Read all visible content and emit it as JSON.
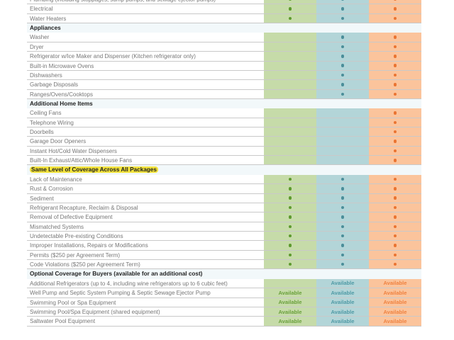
{
  "colors": {
    "basic": "#c6dba9",
    "mid": "#b3d5d8",
    "premium": "#fbc49c",
    "highlight": "#f3e33c"
  },
  "icons": {
    "covered": "filled-dot"
  },
  "rows": [
    {
      "type": "item",
      "label": "Plumbing (including stoppages, sump pumps, and sewage ejector pumps)",
      "marks": [
        "dot",
        "dot",
        "dot"
      ]
    },
    {
      "type": "item",
      "label": "Electrical",
      "marks": [
        "dot",
        "dot",
        "dot"
      ]
    },
    {
      "type": "item",
      "label": "Water Heaters",
      "marks": [
        "dot",
        "dot",
        "dot"
      ]
    },
    {
      "type": "section",
      "label": "Appliances"
    },
    {
      "type": "item",
      "label": "Washer",
      "marks": [
        "",
        "dot",
        "dot"
      ]
    },
    {
      "type": "item",
      "label": "Dryer",
      "marks": [
        "",
        "dot",
        "dot"
      ]
    },
    {
      "type": "item",
      "label": "Refrigerator w/Ice Maker and Dispenser (Kitchen refrigerator only)",
      "marks": [
        "",
        "dot",
        "dot"
      ]
    },
    {
      "type": "item",
      "label": "Built-in Microwave Ovens",
      "marks": [
        "",
        "dot",
        "dot"
      ]
    },
    {
      "type": "item",
      "label": "Dishwashers",
      "marks": [
        "",
        "dot",
        "dot"
      ]
    },
    {
      "type": "item",
      "label": "Garbage Disposals",
      "marks": [
        "",
        "dot",
        "dot"
      ]
    },
    {
      "type": "item",
      "label": "Ranges/Ovens/Cooktops",
      "marks": [
        "",
        "dot",
        "dot"
      ]
    },
    {
      "type": "section",
      "label": "Additional Home Items"
    },
    {
      "type": "item",
      "label": "Ceiling Fans",
      "marks": [
        "",
        "",
        "dot"
      ]
    },
    {
      "type": "item",
      "label": "Telephone Wiring",
      "marks": [
        "",
        "",
        "dot"
      ]
    },
    {
      "type": "item",
      "label": "Doorbells",
      "marks": [
        "",
        "",
        "dot"
      ]
    },
    {
      "type": "item",
      "label": "Garage Door Openers",
      "marks": [
        "",
        "",
        "dot"
      ]
    },
    {
      "type": "item",
      "label": "Instant Hot/Cold Water Dispensers",
      "marks": [
        "",
        "",
        "dot"
      ]
    },
    {
      "type": "item",
      "label": "Built-In Exhaust/Attic/Whole House Fans",
      "marks": [
        "",
        "",
        "dot"
      ]
    },
    {
      "type": "section",
      "label": "Same Level of Coverage Across All Packages",
      "highlight": true
    },
    {
      "type": "item",
      "label": "Lack of Maintenance",
      "marks": [
        "dot",
        "dot",
        "dot"
      ]
    },
    {
      "type": "item",
      "label": "Rust & Corrosion",
      "marks": [
        "dot",
        "dot",
        "dot"
      ]
    },
    {
      "type": "item",
      "label": "Sediment",
      "marks": [
        "dot",
        "dot",
        "dot"
      ]
    },
    {
      "type": "item",
      "label": "Refrigerant Recapture, Reclaim & Disposal",
      "marks": [
        "dot",
        "dot",
        "dot"
      ]
    },
    {
      "type": "item",
      "label": "Removal of Defective Equipment",
      "marks": [
        "dot",
        "dot",
        "dot"
      ]
    },
    {
      "type": "item",
      "label": "Mismatched Systems",
      "marks": [
        "dot",
        "dot",
        "dot"
      ]
    },
    {
      "type": "item",
      "label": "Undetectable Pre-existing Conditions",
      "marks": [
        "dot",
        "dot",
        "dot"
      ]
    },
    {
      "type": "item",
      "label": "Improper Installations, Repairs or Modifications",
      "marks": [
        "dot",
        "dot",
        "dot"
      ]
    },
    {
      "type": "item",
      "label": "Permits ($250 per Agreement Term)",
      "marks": [
        "dot",
        "dot",
        "dot"
      ]
    },
    {
      "type": "item",
      "label": "Code Violations ($250 per Agreement Term)",
      "marks": [
        "dot",
        "dot",
        "dot"
      ]
    },
    {
      "type": "section",
      "label": "Optional Coverage for Buyers (available for an additional cost)"
    },
    {
      "type": "item",
      "label": "Additional Refrigerators (up to 4, including wine refrigerators up to 6 cubic feet)",
      "marks": [
        "",
        "Available",
        "Available"
      ]
    },
    {
      "type": "item",
      "label": "Well Pump and Septic System Pumping & Septic Sewage Ejector Pump",
      "marks": [
        "Available",
        "Available",
        "Available"
      ]
    },
    {
      "type": "item",
      "label": "Swimming Pool or Spa Equipment",
      "marks": [
        "Available",
        "Available",
        "Available"
      ]
    },
    {
      "type": "item",
      "label": "Swimming Pool/Spa Equipment (shared equipment)",
      "marks": [
        "Available",
        "Available",
        "Available"
      ]
    },
    {
      "type": "item",
      "label": "Saltwater Pool Equipment",
      "marks": [
        "Available",
        "Available",
        "Available"
      ]
    }
  ]
}
